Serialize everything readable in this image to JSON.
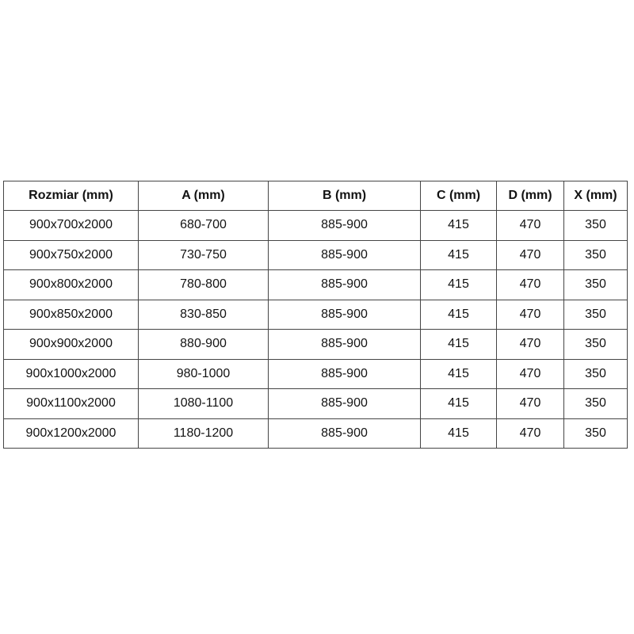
{
  "table": {
    "grid_color": "#454545",
    "text_color": "#131313",
    "columns": [
      "Rozmiar (mm)",
      "A (mm)",
      "B (mm)",
      "C (mm)",
      "D (mm)",
      "X (mm)"
    ],
    "rows": [
      [
        "900x700x2000",
        "680-700",
        "885-900",
        "415",
        "470",
        "350"
      ],
      [
        "900x750x2000",
        "730-750",
        "885-900",
        "415",
        "470",
        "350"
      ],
      [
        "900x800x2000",
        "780-800",
        "885-900",
        "415",
        "470",
        "350"
      ],
      [
        "900x850x2000",
        "830-850",
        "885-900",
        "415",
        "470",
        "350"
      ],
      [
        "900x900x2000",
        "880-900",
        "885-900",
        "415",
        "470",
        "350"
      ],
      [
        "900x1000x2000",
        "980-1000",
        "885-900",
        "415",
        "470",
        "350"
      ],
      [
        "900x1100x2000",
        "1080-1100",
        "885-900",
        "415",
        "470",
        "350"
      ],
      [
        "900x1200x2000",
        "1180-1200",
        "885-900",
        "415",
        "470",
        "350"
      ]
    ]
  }
}
